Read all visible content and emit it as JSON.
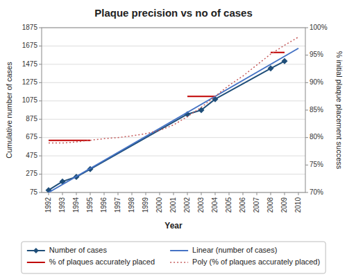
{
  "chart_data": {
    "type": "line",
    "title": "Plaque precision vs no of cases",
    "x_label": "Year",
    "y_label": "Cumulative number of cases",
    "y2_label": "% initial plaque placement success",
    "xlim": [
      1991.5,
      2010.5
    ],
    "xticks": [
      1992,
      1993,
      1994,
      1995,
      1996,
      1997,
      1998,
      1999,
      2000,
      2001,
      2002,
      2003,
      2004,
      2005,
      2006,
      2007,
      2008,
      2009,
      2010
    ],
    "ylim": [
      75,
      1875
    ],
    "yticks": [
      75,
      275,
      475,
      675,
      875,
      1075,
      1275,
      1475,
      1675,
      1875
    ],
    "y2lim": [
      70,
      100
    ],
    "y2ticks": [
      {
        "value": 70,
        "label": "70%"
      },
      {
        "value": 75,
        "label": "75%"
      },
      {
        "value": 80,
        "label": "80%"
      },
      {
        "value": 85,
        "label": "85%"
      },
      {
        "value": 90,
        "label": "90%"
      },
      {
        "value": 95,
        "label": "95%"
      },
      {
        "value": 100,
        "label": "100%"
      }
    ],
    "grid": true,
    "legend": "bottom",
    "series": [
      {
        "name": "Number of cases",
        "axis": "y",
        "color": "#1f4e79",
        "marker": "diamond",
        "line_style": "solid",
        "x": [
          1992,
          1993,
          1994,
          1995,
          2002,
          2003,
          2004,
          2008,
          2009
        ],
        "values": [
          100,
          195,
          245,
          330,
          930,
          975,
          1095,
          1430,
          1510
        ]
      },
      {
        "name": "% of plaques accurately placed",
        "axis": "y2",
        "color": "#c00000",
        "line_style": "solid",
        "x": [
          1992,
          1995,
          null,
          2002,
          2004,
          null,
          2008,
          2009
        ],
        "values": [
          79.5,
          79.5,
          null,
          87.5,
          87.5,
          null,
          95.5,
          95.5
        ]
      },
      {
        "name": "Linear (number of cases)",
        "axis": "y",
        "color": "#4472c4",
        "line_style": "solid",
        "x": [
          1992,
          2010
        ],
        "values": [
          75,
          1650
        ]
      },
      {
        "name": "Poly (% of plaques accurately placed)",
        "axis": "y2",
        "color": "#c55a5a",
        "line_style": "dotted",
        "x": [
          1992,
          1993,
          1994,
          1995,
          1996,
          1997,
          1998,
          1999,
          2000,
          2001,
          2002,
          2003,
          2004,
          2005,
          2006,
          2007,
          2008,
          2009,
          2010
        ],
        "values": [
          79.0,
          79.0,
          79.2,
          79.5,
          79.8,
          80.0,
          80.3,
          80.7,
          81.3,
          82.3,
          83.8,
          85.5,
          87.5,
          89.5,
          91.2,
          93.2,
          95.2,
          96.8,
          98.3
        ]
      }
    ]
  }
}
